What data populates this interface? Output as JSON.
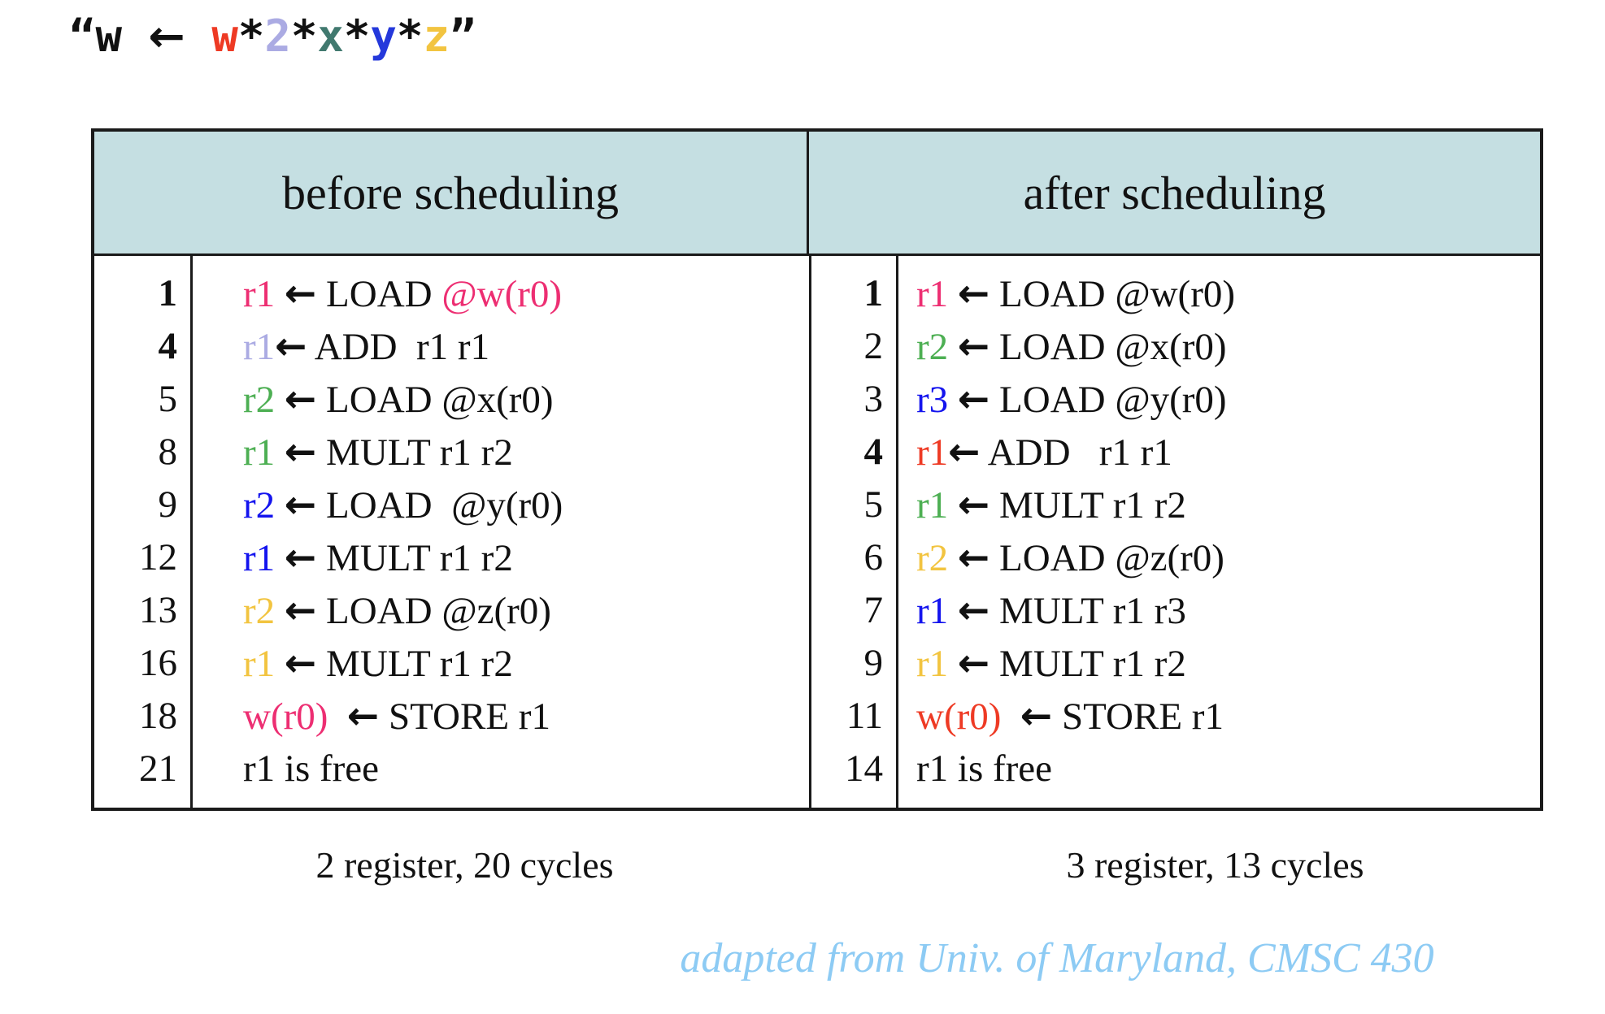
{
  "colors": {
    "pink": "#ED2E72",
    "red": "#EE3A24",
    "lavender": "#ABABE3",
    "green": "#4DAF53",
    "blue": "#1414EE",
    "yellow": "#F2C440",
    "title_teal": "#41796F",
    "title_blue": "#2438DB",
    "attribution_blue": "#8DCBF4",
    "header_bg": "#C5DFE2",
    "ink": "#111111"
  },
  "title": {
    "segments": [
      {
        "t": "“w"
      },
      {
        "t": " "
      },
      {
        "t": "←",
        "a": true
      },
      {
        "t": " "
      },
      {
        "t": "w",
        "c": "red"
      },
      {
        "t": "*"
      },
      {
        "t": "2",
        "c": "lavender"
      },
      {
        "t": "*"
      },
      {
        "t": "x",
        "c": "title_teal"
      },
      {
        "t": "*"
      },
      {
        "t": "y",
        "c": "title_blue"
      },
      {
        "t": "*"
      },
      {
        "t": "z",
        "c": "yellow"
      },
      {
        "t": "”"
      }
    ]
  },
  "table": {
    "before": {
      "header": "before scheduling",
      "caption": "2 register, 20 cycles",
      "rows": [
        {
          "num": "1",
          "bold": true,
          "segs": [
            {
              "t": "r1",
              "c": "pink"
            },
            {
              "t": " "
            },
            {
              "t": "←",
              "a": true
            },
            {
              "t": " LOAD "
            },
            {
              "t": "@w(r0)",
              "c": "pink"
            }
          ]
        },
        {
          "num": "4",
          "bold": true,
          "segs": [
            {
              "t": "r1",
              "c": "lavender"
            },
            {
              "t": "←",
              "a": true
            },
            {
              "t": " ADD  r1 r1"
            }
          ]
        },
        {
          "num": "5",
          "bold": false,
          "segs": [
            {
              "t": "r2",
              "c": "green"
            },
            {
              "t": " "
            },
            {
              "t": "←",
              "a": true
            },
            {
              "t": " LOAD @x(r0)"
            }
          ]
        },
        {
          "num": "8",
          "bold": false,
          "segs": [
            {
              "t": "r1",
              "c": "green"
            },
            {
              "t": " "
            },
            {
              "t": "←",
              "a": true
            },
            {
              "t": " MULT r1 r2"
            }
          ]
        },
        {
          "num": "9",
          "bold": false,
          "segs": [
            {
              "t": "r2",
              "c": "blue"
            },
            {
              "t": " "
            },
            {
              "t": "←",
              "a": true
            },
            {
              "t": " LOAD  @y(r0)"
            }
          ]
        },
        {
          "num": "12",
          "bold": false,
          "segs": [
            {
              "t": "r1",
              "c": "blue"
            },
            {
              "t": " "
            },
            {
              "t": "←",
              "a": true
            },
            {
              "t": " MULT r1 r2"
            }
          ]
        },
        {
          "num": "13",
          "bold": false,
          "segs": [
            {
              "t": "r2",
              "c": "yellow"
            },
            {
              "t": " "
            },
            {
              "t": "←",
              "a": true
            },
            {
              "t": " LOAD @z(r0)"
            }
          ]
        },
        {
          "num": "16",
          "bold": false,
          "segs": [
            {
              "t": "r1",
              "c": "yellow"
            },
            {
              "t": " "
            },
            {
              "t": "←",
              "a": true
            },
            {
              "t": " MULT r1 r2"
            }
          ]
        },
        {
          "num": "18",
          "bold": false,
          "segs": [
            {
              "t": "w(r0)",
              "c": "pink"
            },
            {
              "t": "  "
            },
            {
              "t": "←",
              "a": true
            },
            {
              "t": " STORE r1"
            }
          ]
        },
        {
          "num": "21",
          "bold": false,
          "segs": [
            {
              "t": "r1 is free"
            }
          ]
        }
      ]
    },
    "after": {
      "header": "after scheduling",
      "caption": "3 register, 13 cycles",
      "rows": [
        {
          "num": "1",
          "bold": true,
          "segs": [
            {
              "t": "r1",
              "c": "pink"
            },
            {
              "t": " "
            },
            {
              "t": "←",
              "a": true
            },
            {
              "t": " LOAD @w(r0)"
            }
          ]
        },
        {
          "num": "2",
          "bold": false,
          "segs": [
            {
              "t": "r2",
              "c": "green"
            },
            {
              "t": " "
            },
            {
              "t": "←",
              "a": true
            },
            {
              "t": " LOAD @x(r0)"
            }
          ]
        },
        {
          "num": "3",
          "bold": false,
          "segs": [
            {
              "t": "r3",
              "c": "blue"
            },
            {
              "t": " "
            },
            {
              "t": "←",
              "a": true
            },
            {
              "t": " LOAD @y(r0)"
            }
          ]
        },
        {
          "num": "4",
          "bold": true,
          "segs": [
            {
              "t": "r1",
              "c": "red"
            },
            {
              "t": "←",
              "a": true
            },
            {
              "t": " ADD   r1 r1"
            }
          ]
        },
        {
          "num": "5",
          "bold": false,
          "segs": [
            {
              "t": "r1",
              "c": "green"
            },
            {
              "t": " "
            },
            {
              "t": "←",
              "a": true
            },
            {
              "t": " MULT r1 r2"
            }
          ]
        },
        {
          "num": "6",
          "bold": false,
          "segs": [
            {
              "t": "r2",
              "c": "yellow"
            },
            {
              "t": " "
            },
            {
              "t": "←",
              "a": true
            },
            {
              "t": " LOAD @z(r0)"
            }
          ]
        },
        {
          "num": "7",
          "bold": false,
          "segs": [
            {
              "t": "r1",
              "c": "blue"
            },
            {
              "t": " "
            },
            {
              "t": "←",
              "a": true
            },
            {
              "t": " MULT r1 r3"
            }
          ]
        },
        {
          "num": "9",
          "bold": false,
          "segs": [
            {
              "t": "r1",
              "c": "yellow"
            },
            {
              "t": " "
            },
            {
              "t": "←",
              "a": true
            },
            {
              "t": " MULT r1 r2"
            }
          ]
        },
        {
          "num": "11",
          "bold": false,
          "segs": [
            {
              "t": "w(r0)",
              "c": "red"
            },
            {
              "t": "  "
            },
            {
              "t": "←",
              "a": true
            },
            {
              "t": " STORE r1"
            }
          ]
        },
        {
          "num": "14",
          "bold": false,
          "segs": [
            {
              "t": "r1 is free"
            }
          ]
        }
      ]
    }
  },
  "attribution": "adapted from Univ. of Maryland, CMSC 430"
}
